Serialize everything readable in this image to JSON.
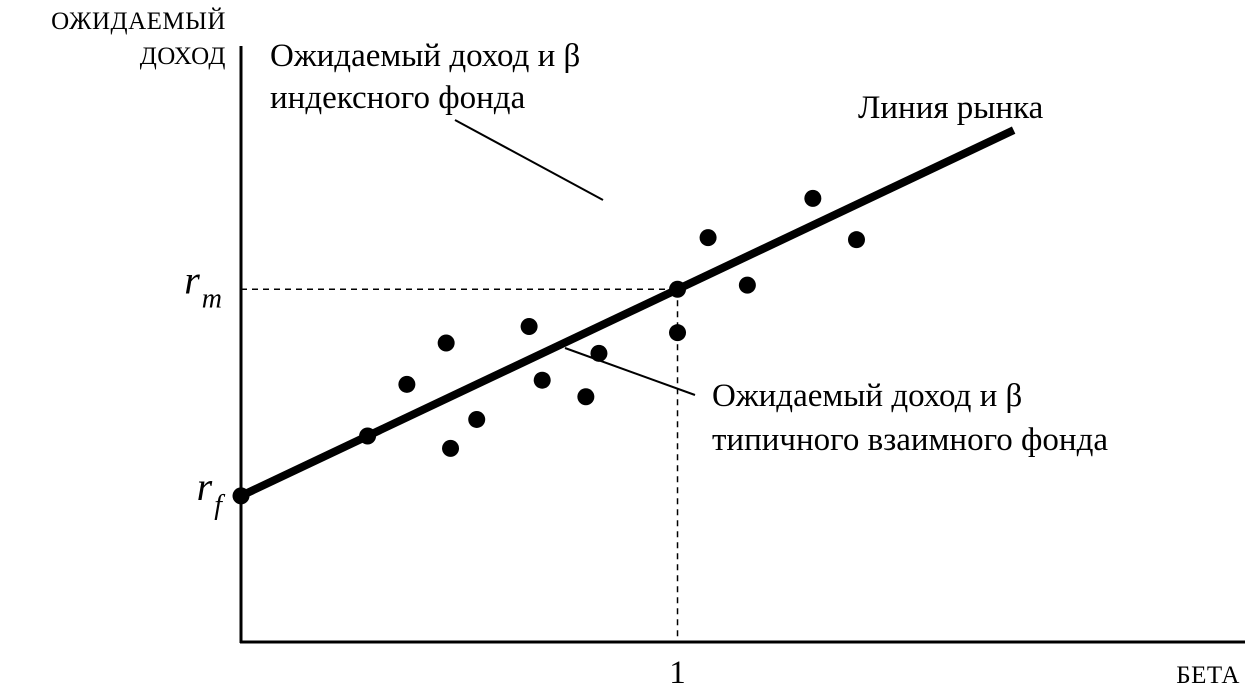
{
  "chart_data": {
    "type": "scatter",
    "ylabel_lines": [
      "ОЖИДАЕМЫЙ",
      "ДОХОД"
    ],
    "xlabel": "БЕТА",
    "x_ticks": [
      {
        "value": 1,
        "label": "1"
      }
    ],
    "y_ticks": [
      {
        "value": 3,
        "main": "r",
        "sub": "f"
      },
      {
        "value": 8,
        "main": "r",
        "sub": "m"
      }
    ],
    "xlim": [
      0,
      2.3
    ],
    "ylim": [
      -1.6,
      15
    ],
    "market_line": {
      "label": "Линия рынка",
      "x0": 0,
      "y0": 3,
      "x1": 1.77,
      "y1": 11.85
    },
    "index_fund": {
      "x": 1.0,
      "y": 8.0
    },
    "points": [
      {
        "x": 0.29,
        "y": 4.45
      },
      {
        "x": 0.38,
        "y": 5.7
      },
      {
        "x": 0.47,
        "y": 6.7
      },
      {
        "x": 0.48,
        "y": 4.15
      },
      {
        "x": 0.54,
        "y": 4.85
      },
      {
        "x": 0.66,
        "y": 7.1
      },
      {
        "x": 0.69,
        "y": 5.8
      },
      {
        "x": 0.79,
        "y": 5.4
      },
      {
        "x": 0.82,
        "y": 6.45
      },
      {
        "x": 1.0,
        "y": 6.95
      },
      {
        "x": 1.07,
        "y": 9.25
      },
      {
        "x": 1.16,
        "y": 8.1
      },
      {
        "x": 1.31,
        "y": 10.2
      },
      {
        "x": 1.41,
        "y": 9.2
      }
    ],
    "annotations": [
      {
        "name": "index-fund-annotation",
        "lines": [
          "Ожидаемый доход и β",
          "индексного фонда"
        ]
      },
      {
        "name": "mutual-fund-annotation",
        "lines": [
          "Ожидаемый доход и β",
          "типичного взаимного фонда"
        ]
      }
    ]
  }
}
